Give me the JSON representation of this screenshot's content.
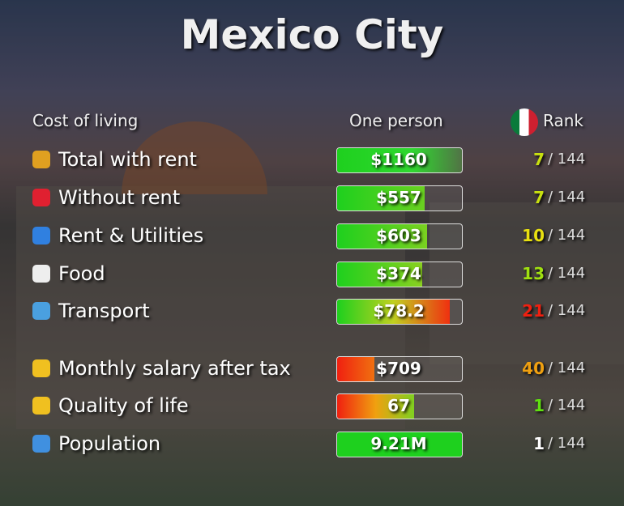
{
  "header": {
    "title": "Mexico City",
    "col_label": "Cost of living",
    "col_value": "One person",
    "col_rank": "Rank"
  },
  "rows": [
    {
      "label": "Total with rent",
      "value": "$1160",
      "rank": "7",
      "of": "/ 144"
    },
    {
      "label": "Without rent",
      "value": "$557",
      "rank": "7",
      "of": "/ 144"
    },
    {
      "label": "Rent & Utilities",
      "value": "$603",
      "rank": "10",
      "of": "/ 144"
    },
    {
      "label": "Food",
      "value": "$374",
      "rank": "13",
      "of": "/ 144"
    },
    {
      "label": "Transport",
      "value": "$78.2",
      "rank": "21",
      "of": "/ 144"
    },
    {
      "label": "Monthly salary after tax",
      "value": "$709",
      "rank": "40",
      "of": "/ 144"
    },
    {
      "label": "Quality of life",
      "value": "67",
      "rank": "1",
      "of": "/ 144"
    },
    {
      "label": "Population",
      "value": "9.21M",
      "rank": "1",
      "of": "/ 144"
    }
  ]
}
